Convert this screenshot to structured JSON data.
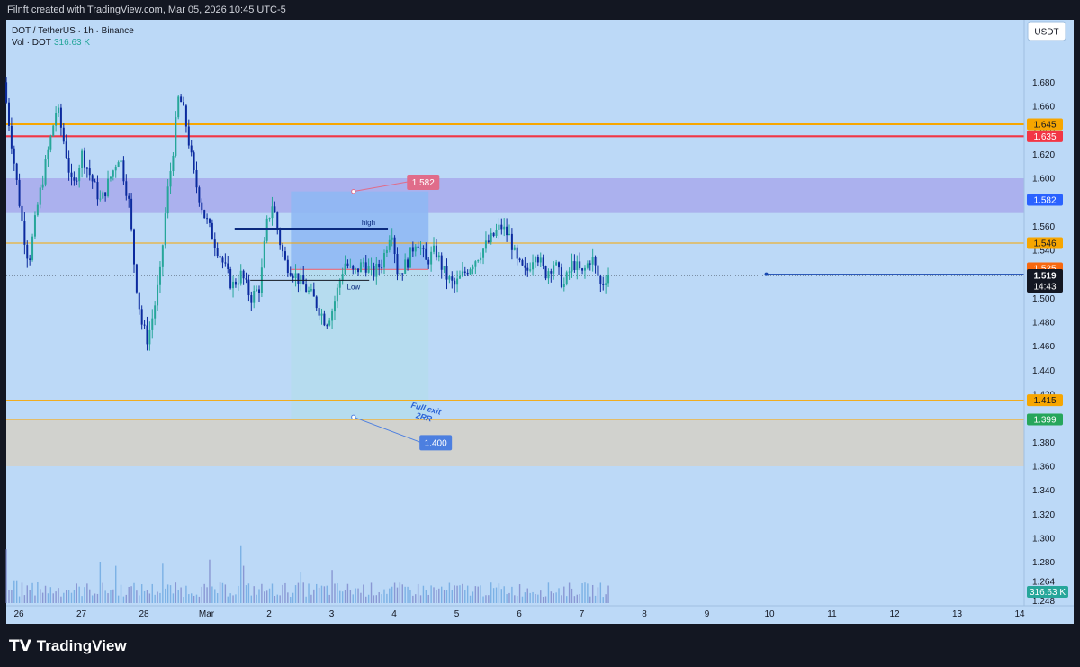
{
  "header": {
    "attribution": "Filnft created with TradingView.com, Mar 05, 2026 10:45 UTC-5"
  },
  "legend": {
    "symbol": "DOT / TetherUS · 1h · Binance",
    "volume_label": "Vol · DOT",
    "volume_value": "316.63 K"
  },
  "currency_button": "USDT",
  "footer": {
    "brand": "TradingView"
  },
  "colors": {
    "background": "#bcd9f7",
    "frame": "#131722",
    "candle_up": "#26a69a",
    "candle_down": "#0b2a9e",
    "orange_line": "#f7a600",
    "red_line": "#f23645",
    "zone_upper": "#9c8fe8",
    "zone_lower": "#d8cfc0",
    "take_profit_box": "#93c1f5",
    "stop_box": "#b7ddf0"
  },
  "chart_data": {
    "type": "candlestick",
    "y_axis": {
      "range": [
        1.243,
        1.705
      ],
      "tick_labels": [
        "1.680",
        "1.660",
        "1.640",
        "1.620",
        "1.600",
        "1.580",
        "1.560",
        "1.540",
        "1.520",
        "1.500",
        "1.480",
        "1.460",
        "1.440",
        "1.420",
        "1.400",
        "1.380",
        "1.360",
        "1.340",
        "1.320",
        "1.300",
        "1.280",
        "1.264",
        "1.248"
      ]
    },
    "x_axis": {
      "tick_labels": [
        "26",
        "27",
        "28",
        "Mar",
        "2",
        "3",
        "4",
        "5",
        "6",
        "7",
        "8",
        "9",
        "10",
        "11",
        "12",
        "13",
        "14"
      ],
      "range_days": [
        25.8,
        41.9
      ]
    },
    "price_tags": [
      {
        "value": "1.645",
        "bg": "#f7a600",
        "fg": "#131722"
      },
      {
        "value": "1.635",
        "bg": "#f23645",
        "fg": "#ffffff"
      },
      {
        "value": "1.582",
        "bg": "#2962ff",
        "fg": "#ffffff"
      },
      {
        "value": "1.546",
        "bg": "#f7a600",
        "fg": "#131722"
      },
      {
        "value": "1.525",
        "bg": "#f7680f",
        "fg": "#ffffff"
      },
      {
        "value": "1.415",
        "bg": "#f7a600",
        "fg": "#131722"
      },
      {
        "value": "1.399",
        "bg": "#26a65b",
        "fg": "#ffffff"
      }
    ],
    "last_price": {
      "value": "1.519",
      "countdown": "14:43",
      "price": 1.519
    },
    "volume_tag": "316.63 K",
    "horizontal_lines": [
      {
        "price": 1.645,
        "color": "#f7a600"
      },
      {
        "price": 1.635,
        "color": "#f23645"
      },
      {
        "price": 1.546,
        "color": "#f7a600"
      },
      {
        "price": 1.415,
        "color": "#f7a600"
      },
      {
        "price": 1.399,
        "color": "#f7a600"
      }
    ],
    "zones": [
      {
        "from": 1.571,
        "to": 1.6,
        "color": "#9c8fe8"
      },
      {
        "from": 1.36,
        "to": 1.399,
        "color": "#d8cfc0"
      }
    ],
    "position": {
      "start_day": 30.35,
      "end_day": 32.55,
      "entry": 1.524,
      "target": 1.589,
      "stop": 1.399
    },
    "level_lines": [
      {
        "label": "high",
        "price": 1.558,
        "from_day": 29.45,
        "to_day": 31.9
      },
      {
        "label": "Low",
        "price": 1.515,
        "from_day": 29.7,
        "to_day": 31.6
      }
    ],
    "callouts": [
      {
        "label": "1.582",
        "point_day": 31.35,
        "point_price": 1.589,
        "tag_day": 32.45,
        "tag_price": 1.597,
        "color": "#e06c8a"
      },
      {
        "label": "1.400",
        "point_day": 31.35,
        "point_price": 1.401,
        "tag_day": 32.65,
        "tag_price": 1.38,
        "color": "#4c7fe0"
      }
    ],
    "annotation": {
      "line1": "Full exit",
      "line2": "2RR",
      "day": 32.5,
      "price": 1.406
    },
    "ray": {
      "from_day": 37.95,
      "price": 1.52
    },
    "candle_series": {
      "points": [
        [
          25.8,
          1.68
        ],
        [
          25.9,
          1.64
        ],
        [
          26.0,
          1.6
        ],
        [
          26.1,
          1.56
        ],
        [
          26.2,
          1.53
        ],
        [
          26.35,
          1.58
        ],
        [
          26.5,
          1.62
        ],
        [
          26.65,
          1.66
        ],
        [
          26.8,
          1.62
        ],
        [
          26.9,
          1.59
        ],
        [
          27.05,
          1.62
        ],
        [
          27.2,
          1.6
        ],
        [
          27.35,
          1.58
        ],
        [
          27.5,
          1.6
        ],
        [
          27.65,
          1.62
        ],
        [
          27.8,
          1.58
        ],
        [
          27.9,
          1.52
        ],
        [
          28.0,
          1.48
        ],
        [
          28.1,
          1.465
        ],
        [
          28.2,
          1.49
        ],
        [
          28.3,
          1.52
        ],
        [
          28.4,
          1.58
        ],
        [
          28.5,
          1.62
        ],
        [
          28.6,
          1.67
        ],
        [
          28.7,
          1.65
        ],
        [
          28.85,
          1.6
        ],
        [
          29.0,
          1.57
        ],
        [
          29.15,
          1.55
        ],
        [
          29.3,
          1.53
        ],
        [
          29.45,
          1.51
        ],
        [
          29.6,
          1.52
        ],
        [
          29.75,
          1.5
        ],
        [
          29.9,
          1.51
        ],
        [
          30.0,
          1.56
        ],
        [
          30.1,
          1.58
        ],
        [
          30.2,
          1.55
        ],
        [
          30.3,
          1.53
        ],
        [
          30.45,
          1.52
        ],
        [
          30.6,
          1.51
        ],
        [
          30.75,
          1.5
        ],
        [
          30.85,
          1.49
        ],
        [
          30.95,
          1.48
        ],
        [
          31.05,
          1.49
        ],
        [
          31.15,
          1.51
        ],
        [
          31.25,
          1.53
        ],
        [
          31.4,
          1.52
        ],
        [
          31.55,
          1.53
        ],
        [
          31.7,
          1.52
        ],
        [
          31.85,
          1.53
        ],
        [
          32.0,
          1.56
        ],
        [
          32.1,
          1.52
        ],
        [
          32.25,
          1.53
        ],
        [
          32.4,
          1.55
        ],
        [
          32.55,
          1.53
        ],
        [
          32.7,
          1.54
        ],
        [
          32.85,
          1.52
        ],
        [
          33.0,
          1.51
        ],
        [
          33.15,
          1.52
        ],
        [
          33.3,
          1.53
        ],
        [
          33.45,
          1.54
        ],
        [
          33.6,
          1.55
        ],
        [
          33.75,
          1.56
        ],
        [
          33.9,
          1.55
        ],
        [
          34.0,
          1.53
        ],
        [
          34.15,
          1.52
        ],
        [
          34.3,
          1.54
        ],
        [
          34.45,
          1.52
        ],
        [
          34.6,
          1.53
        ],
        [
          34.75,
          1.51
        ],
        [
          34.9,
          1.53
        ],
        [
          35.05,
          1.52
        ],
        [
          35.2,
          1.535
        ],
        [
          35.35,
          1.51
        ],
        [
          35.45,
          1.52
        ]
      ],
      "day_offset_note": ""
    },
    "volume_series": {
      "spikes": [
        [
          25.8,
          0.52
        ],
        [
          25.95,
          0.22
        ],
        [
          26.3,
          0.2
        ],
        [
          27.3,
          0.4
        ],
        [
          27.55,
          0.36
        ],
        [
          28.3,
          0.38
        ],
        [
          29.05,
          0.42
        ],
        [
          29.55,
          0.55
        ],
        [
          29.6,
          0.36
        ],
        [
          30.5,
          0.3
        ],
        [
          31.0,
          0.32
        ],
        [
          32.15,
          0.18
        ]
      ],
      "max_volume": 1.0
    }
  }
}
